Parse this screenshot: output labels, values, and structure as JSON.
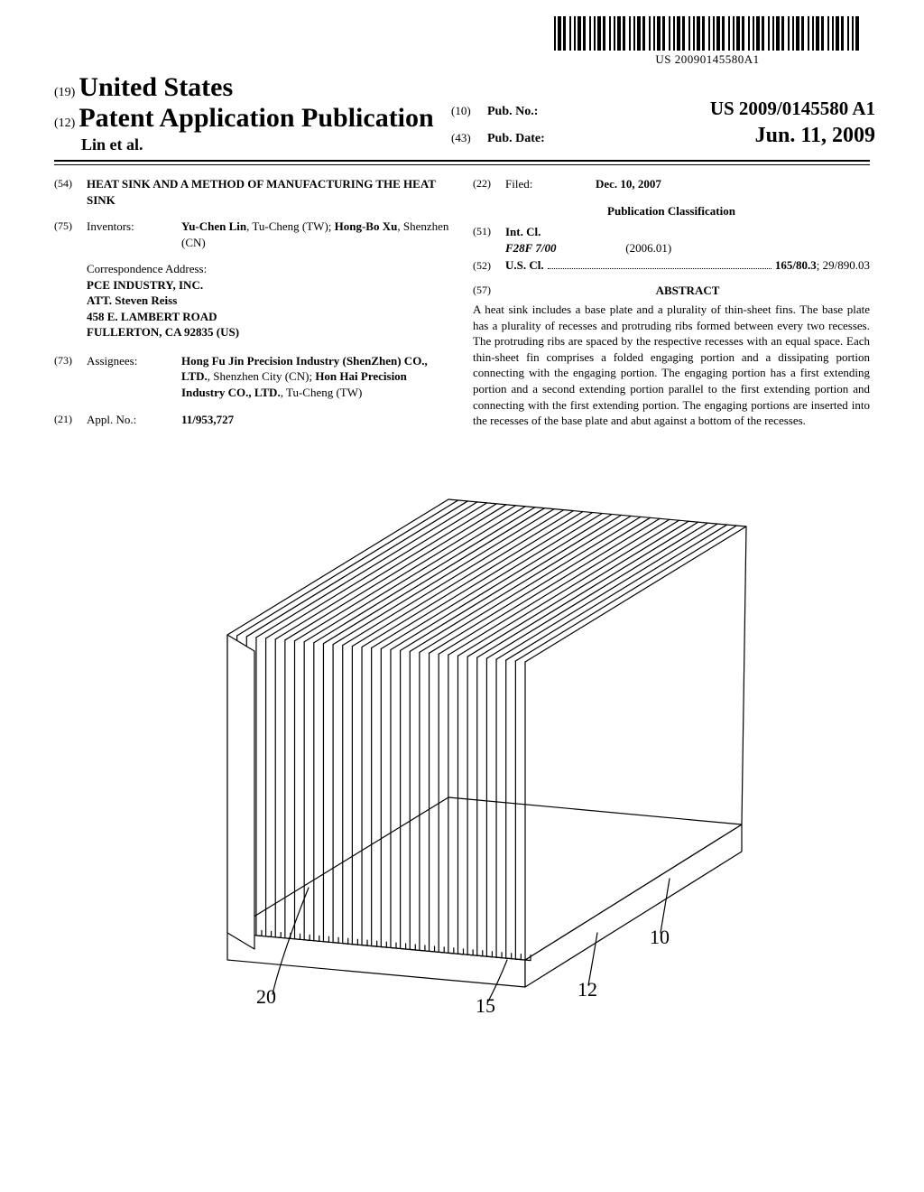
{
  "barcode_text": "US 20090145580A1",
  "header": {
    "code19": "(19)",
    "country": "United States",
    "code12": "(12)",
    "pub_type": "Patent Application Publication",
    "authors": "Lin et al.",
    "code10": "(10)",
    "pubno_label": "Pub. No.:",
    "pubno_value": "US 2009/0145580 A1",
    "code43": "(43)",
    "pubdate_label": "Pub. Date:",
    "pubdate_value": "Jun. 11, 2009"
  },
  "left": {
    "f54": {
      "code": "(54)",
      "title": "HEAT SINK AND A METHOD OF MANUFACTURING THE HEAT SINK"
    },
    "f75": {
      "code": "(75)",
      "label": "Inventors:",
      "value_html": "Yu-Chen Lin, Tu-Cheng (TW); Hong-Bo Xu, Shenzhen (CN)",
      "inv1_name": "Yu-Chen Lin",
      "inv1_rest": ", Tu-Cheng (TW);",
      "inv2_name": "Hong-Bo Xu",
      "inv2_rest": ", Shenzhen (CN)"
    },
    "corr": {
      "heading": "Correspondence Address:",
      "l1": "PCE INDUSTRY, INC.",
      "l2": "ATT. Steven Reiss",
      "l3": "458 E. LAMBERT ROAD",
      "l4": "FULLERTON, CA 92835 (US)"
    },
    "f73": {
      "code": "(73)",
      "label": "Assignees:",
      "a1_name": "Hong Fu Jin Precision Industry (ShenZhen) CO., LTD.",
      "a1_rest": ", Shenzhen City (CN); ",
      "a2_name": "Hon Hai Precision Industry CO., LTD.",
      "a2_rest": ", Tu-Cheng (TW)"
    },
    "f21": {
      "code": "(21)",
      "label": "Appl. No.:",
      "value": "11/953,727"
    }
  },
  "right": {
    "f22": {
      "code": "(22)",
      "label": "Filed:",
      "value": "Dec. 10, 2007"
    },
    "pubclass_heading": "Publication Classification",
    "f51": {
      "code": "(51)",
      "label": "Int. Cl.",
      "cls": "F28F  7/00",
      "date": "(2006.01)"
    },
    "f52": {
      "code": "(52)",
      "label": "U.S. Cl.",
      "value": "165/80.3",
      "extra": "; 29/890.03"
    },
    "f57": {
      "code": "(57)",
      "heading": "ABSTRACT"
    },
    "abstract": "A heat sink includes a base plate and a plurality of thin-sheet fins. The base plate has a plurality of recesses and protruding ribs formed between every two recesses. The protruding ribs are spaced by the respective recesses with an equal space. Each thin-sheet fin comprises a folded engaging portion and a dissipating portion connecting with the engaging portion. The engaging portion has a first extending portion and a second extending portion parallel to the first extending portion and connecting with the first extending portion. The engaging portions are inserted into the recesses of the base plate and abut against a bottom of the recesses."
  },
  "figure_labels": {
    "r10": "10",
    "r12": "12",
    "r15": "15",
    "r20": "20"
  }
}
